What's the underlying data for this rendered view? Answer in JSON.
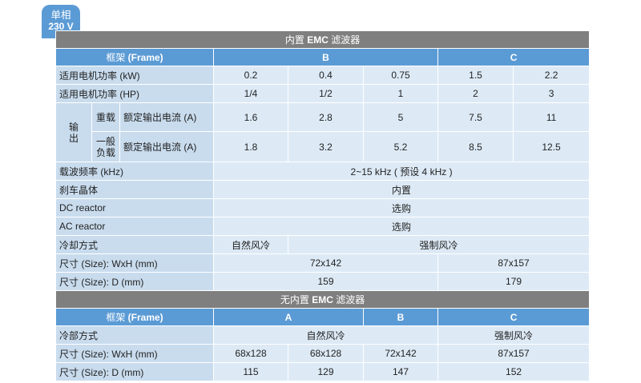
{
  "badge": {
    "line1": "单相",
    "line2": "230 V"
  },
  "section1": {
    "title_pre": "内置 ",
    "title_bold": "EMC",
    "title_post": " 滤波器",
    "frame_label_pre": "框架 ",
    "frame_label_bold": "(Frame)",
    "frames": [
      "B",
      "C"
    ],
    "power_kw": {
      "label": "适用电机功率 (kW)",
      "values": [
        "0.2",
        "0.4",
        "0.75",
        "1.5",
        "2.2"
      ]
    },
    "power_hp": {
      "label": "适用电机功率 (HP)",
      "values": [
        "1/4",
        "1/2",
        "1",
        "2",
        "3"
      ]
    },
    "output_label": "输出",
    "heavy": {
      "label": "重载",
      "sub_label": "额定输出电流 (A)",
      "values": [
        "1.6",
        "2.8",
        "5",
        "7.5",
        "11"
      ]
    },
    "normal": {
      "label_l1": "一般",
      "label_l2": "负载",
      "sub_label": "额定输出电流 (A)",
      "values": [
        "1.8",
        "3.2",
        "5.2",
        "8.5",
        "12.5"
      ]
    },
    "carrier": {
      "label": "载波频率 (kHz)",
      "value": "2~15 kHz ( 预设 4 kHz )"
    },
    "brake": {
      "label": "刹车晶体",
      "value": "内置"
    },
    "dc_reactor": {
      "label": "DC reactor",
      "value": "选购"
    },
    "ac_reactor": {
      "label": "AC reactor",
      "value": "选购"
    },
    "cooling": {
      "label": "冷却方式",
      "natural": "自然风冷",
      "forced": "强制风冷"
    },
    "size_wxh": {
      "label": "尺寸 (Size): WxH (mm)",
      "b": "72x142",
      "c": "87x157"
    },
    "size_d": {
      "label": "尺寸 (Size): D (mm)",
      "b": "159",
      "c": "179"
    }
  },
  "section2": {
    "title_pre": "无内置 ",
    "title_bold": "EMC",
    "title_post": " 滤波器",
    "frame_label_pre": "框架 ",
    "frame_label_bold": "(Frame)",
    "frames": [
      "A",
      "B",
      "C"
    ],
    "cooling": {
      "label": "冷部方式",
      "natural": "自然风冷",
      "forced": "强制风冷"
    },
    "size_wxh": {
      "label": "尺寸 (Size): WxH (mm)",
      "values": [
        "68x128",
        "68x128",
        "72x142",
        "87x157"
      ]
    },
    "size_d": {
      "label": "尺寸 (Size): D (mm)",
      "values": [
        "115",
        "129",
        "147",
        "152"
      ]
    }
  }
}
